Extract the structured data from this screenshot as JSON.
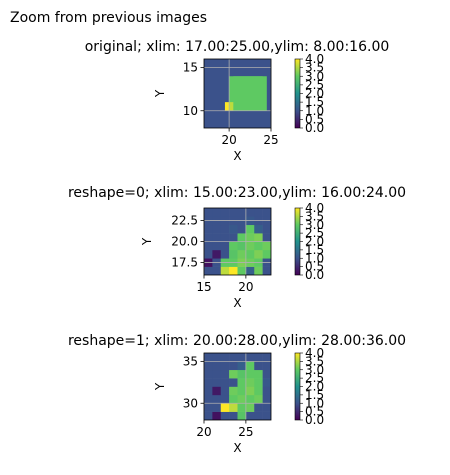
{
  "figure": {
    "suptitle": "Zoom from previous images"
  },
  "colormap": {
    "name": "viridis",
    "stops": [
      "#440154",
      "#3b528b",
      "#21918c",
      "#5ec962",
      "#fde725"
    ]
  },
  "chart_data": [
    {
      "type": "heatmap",
      "title": "original; xlim: 17.00:25.00,ylim: 8.00:16.00",
      "xlabel": "X",
      "ylabel": "Y",
      "xlim": [
        17,
        25
      ],
      "ylim": [
        8,
        16
      ],
      "xticks": [
        20,
        25
      ],
      "yticks": [
        10,
        15
      ],
      "grid": true,
      "cell_size": 0.5,
      "background_value": 1.0,
      "regions": [
        {
          "x0": 20,
          "x1": 24,
          "y0": 10,
          "y1": 14,
          "value": 3.0
        },
        {
          "x0": 20.5,
          "x1": 24.5,
          "y0": 10,
          "y1": 14,
          "value": 3.0
        },
        {
          "x0": 19.5,
          "x1": 20.0,
          "y0": 10,
          "y1": 11,
          "value": 4.0
        },
        {
          "x0": 20.0,
          "x1": 20.5,
          "y0": 10,
          "y1": 11,
          "value": 3.6
        }
      ],
      "colorbar": {
        "min": 0.0,
        "max": 4.0,
        "ticks": [
          "0.0",
          "0.5",
          "1.0",
          "1.5",
          "2.0",
          "2.5",
          "3.0",
          "3.5",
          "4.0"
        ]
      }
    },
    {
      "type": "heatmap",
      "title": "reshape=0; xlim: 15.00:23.00,ylim: 16.00:24.00",
      "xlabel": "X",
      "ylabel": "Y",
      "xlim": [
        15,
        23
      ],
      "ylim": [
        16,
        24
      ],
      "xticks": [
        15,
        20
      ],
      "yticks": [
        17.5,
        20.0,
        22.5
      ],
      "ytick_labels": [
        "17.5",
        "20.0",
        "22.5"
      ],
      "grid": true,
      "x0": 15,
      "y0": 16,
      "cell_size": 1,
      "grid_values": [
        [
          1.0,
          1.0,
          3.6,
          4.0,
          3.0,
          1.2,
          3.1,
          1.0
        ],
        [
          0.2,
          1.0,
          3.0,
          3.0,
          3.2,
          3.1,
          3.0,
          1.0
        ],
        [
          1.0,
          0.3,
          1.0,
          2.9,
          3.1,
          3.0,
          3.2,
          3.0
        ],
        [
          1.0,
          1.0,
          1.0,
          3.0,
          2.9,
          3.1,
          3.0,
          3.1
        ],
        [
          1.0,
          1.0,
          1.0,
          1.0,
          3.0,
          3.1,
          3.2,
          1.0
        ],
        [
          1.0,
          1.0,
          1.0,
          1.1,
          1.0,
          3.0,
          1.2,
          1.0
        ],
        [
          1.0,
          1.0,
          1.0,
          1.0,
          1.0,
          1.1,
          1.0,
          1.0
        ],
        [
          1.0,
          1.0,
          1.0,
          1.0,
          1.0,
          1.0,
          1.0,
          1.0
        ]
      ],
      "colorbar": {
        "min": 0.0,
        "max": 4.0,
        "ticks": [
          "0.0",
          "0.5",
          "1.0",
          "1.5",
          "2.0",
          "2.5",
          "3.0",
          "3.5",
          "4.0"
        ]
      }
    },
    {
      "type": "heatmap",
      "title": "reshape=1; xlim: 20.00:28.00,ylim: 28.00:36.00",
      "xlabel": "X",
      "ylabel": "Y",
      "xlim": [
        20,
        28
      ],
      "ylim": [
        28,
        36
      ],
      "xticks": [
        20,
        25
      ],
      "yticks": [
        30,
        35
      ],
      "grid": true,
      "x0": 20,
      "y0": 28,
      "cell_size": 1,
      "grid_values": [
        [
          1.0,
          0.2,
          1.0,
          1.0,
          2.9,
          1.0,
          1.0,
          1.0
        ],
        [
          1.0,
          1.0,
          4.0,
          3.6,
          3.0,
          3.1,
          1.0,
          1.0
        ],
        [
          1.0,
          1.0,
          1.0,
          3.0,
          3.1,
          3.0,
          3.1,
          1.0
        ],
        [
          1.0,
          0.3,
          1.0,
          3.1,
          3.0,
          3.2,
          3.0,
          1.0
        ],
        [
          1.0,
          1.0,
          1.0,
          1.0,
          3.0,
          3.1,
          3.0,
          1.1
        ],
        [
          1.0,
          1.0,
          1.0,
          3.1,
          2.9,
          3.0,
          3.0,
          1.0
        ],
        [
          1.0,
          1.0,
          1.0,
          1.0,
          1.2,
          3.0,
          1.0,
          1.0
        ],
        [
          1.0,
          1.0,
          1.0,
          1.0,
          1.0,
          1.0,
          1.0,
          1.0
        ]
      ],
      "colorbar": {
        "min": 0.0,
        "max": 4.0,
        "ticks": [
          "0.0",
          "0.5",
          "1.0",
          "1.5",
          "2.0",
          "2.5",
          "3.0",
          "3.5",
          "4.0"
        ]
      }
    }
  ]
}
